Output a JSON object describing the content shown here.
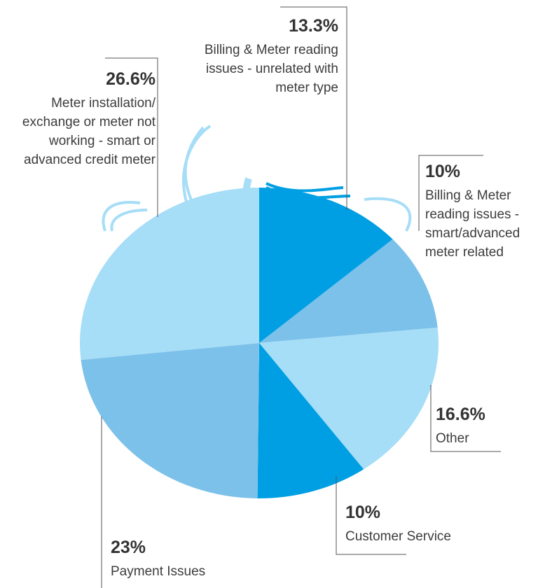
{
  "chart_data": {
    "type": "pie",
    "categories": [
      "Billing & Meter reading issues - unrelated with meter type",
      "Billing & Meter reading issues - smart/advanced meter related",
      "Other",
      "Customer Service",
      "Payment Issues",
      "Meter installation/ exchange or meter not working - smart or advanced credit meter"
    ],
    "values": [
      13.3,
      10,
      16.6,
      10,
      23,
      26.6
    ],
    "value_labels": [
      "13.3%",
      "10%",
      "16.6%",
      "10%",
      "23%",
      "26.6%"
    ],
    "colors": [
      "#009fe3",
      "#7cc1ea",
      "#a6ddf7",
      "#009fe3",
      "#7cc1ea",
      "#a6ddf7"
    ]
  }
}
